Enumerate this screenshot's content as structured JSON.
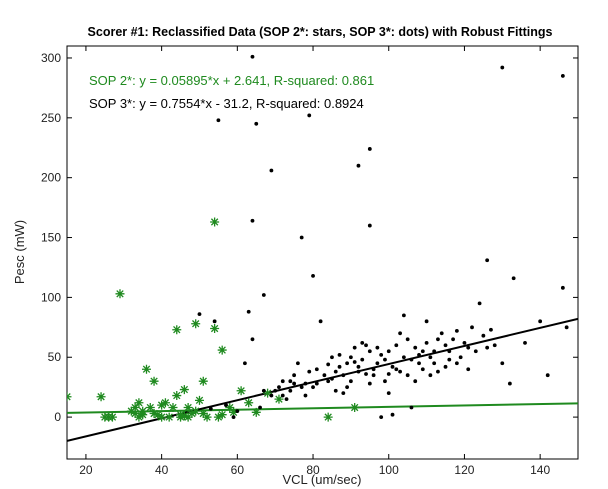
{
  "chart_data": {
    "type": "scatter",
    "title": "Scorer #1: Reclassified Data (SOP 2*: stars, SOP 3*: dots) with Robust Fittings",
    "xlabel": "VCL (um/sec)",
    "ylabel": "Pesc (mW)",
    "xlim": [
      15,
      150
    ],
    "ylim": [
      -35,
      310
    ],
    "xticks": [
      20,
      40,
      60,
      80,
      100,
      120,
      140
    ],
    "yticks": [
      0,
      50,
      100,
      150,
      200,
      250,
      300
    ],
    "annotations": [
      {
        "text": "SOP 2*: y = 0.05895*x + 2.641, R-squared: 0.861",
        "color": "#1f8a1f"
      },
      {
        "text": "SOP 3*: y = 0.7554*x - 31.2, R-squared: 0.8924",
        "color": "#000000"
      }
    ],
    "series": [
      {
        "label": "SOP 2*",
        "marker": "star",
        "color": "#1f8a1f",
        "points": [
          [
            15,
            17
          ],
          [
            24,
            17
          ],
          [
            25,
            0
          ],
          [
            26,
            0
          ],
          [
            27,
            0
          ],
          [
            29,
            103
          ],
          [
            32,
            5
          ],
          [
            33,
            8
          ],
          [
            33,
            3
          ],
          [
            34,
            12
          ],
          [
            34,
            0
          ],
          [
            35,
            2
          ],
          [
            35,
            5
          ],
          [
            36,
            40
          ],
          [
            37,
            8
          ],
          [
            38,
            30
          ],
          [
            38,
            3
          ],
          [
            39,
            2
          ],
          [
            40,
            10
          ],
          [
            40,
            0
          ],
          [
            41,
            12
          ],
          [
            42,
            0
          ],
          [
            43,
            8
          ],
          [
            44,
            18
          ],
          [
            44,
            73
          ],
          [
            45,
            2
          ],
          [
            45,
            0
          ],
          [
            46,
            23
          ],
          [
            46,
            1
          ],
          [
            47,
            0
          ],
          [
            47,
            8
          ],
          [
            48,
            3
          ],
          [
            49,
            78
          ],
          [
            49,
            5
          ],
          [
            50,
            14
          ],
          [
            51,
            3
          ],
          [
            51,
            30
          ],
          [
            52,
            0
          ],
          [
            54,
            163
          ],
          [
            54,
            74
          ],
          [
            55,
            0
          ],
          [
            56,
            56
          ],
          [
            56,
            2
          ],
          [
            58,
            8
          ],
          [
            59,
            4
          ],
          [
            61,
            22
          ],
          [
            63,
            12
          ],
          [
            65,
            4
          ],
          [
            68,
            20
          ],
          [
            71,
            15
          ],
          [
            84,
            0
          ],
          [
            91,
            8
          ]
        ]
      },
      {
        "label": "SOP 3*",
        "marker": "dot",
        "color": "#000000",
        "points": [
          [
            64,
            301
          ],
          [
            55,
            248
          ],
          [
            65,
            245
          ],
          [
            79,
            252
          ],
          [
            69,
            206
          ],
          [
            95,
            224
          ],
          [
            92,
            210
          ],
          [
            130,
            292
          ],
          [
            146,
            285
          ],
          [
            77,
            150
          ],
          [
            95,
            160
          ],
          [
            64,
            164
          ],
          [
            80,
            118
          ],
          [
            126,
            131
          ],
          [
            133,
            116
          ],
          [
            146,
            108
          ],
          [
            50,
            86
          ],
          [
            54,
            80
          ],
          [
            63,
            88
          ],
          [
            67,
            102
          ],
          [
            64,
            65
          ],
          [
            72,
            30
          ],
          [
            74,
            22
          ],
          [
            75,
            35
          ],
          [
            78,
            28
          ],
          [
            80,
            25
          ],
          [
            81,
            40
          ],
          [
            82,
            80
          ],
          [
            84,
            44
          ],
          [
            85,
            32
          ],
          [
            86,
            38
          ],
          [
            87,
            52
          ],
          [
            88,
            35
          ],
          [
            89,
            45
          ],
          [
            90,
            50
          ],
          [
            90,
            30
          ],
          [
            91,
            58
          ],
          [
            92,
            42
          ],
          [
            93,
            48
          ],
          [
            94,
            36
          ],
          [
            95,
            55
          ],
          [
            96,
            40
          ],
          [
            97,
            45
          ],
          [
            98,
            52
          ],
          [
            98,
            0
          ],
          [
            99,
            30
          ],
          [
            100,
            55
          ],
          [
            101,
            42
          ],
          [
            101,
            2
          ],
          [
            102,
            60
          ],
          [
            103,
            38
          ],
          [
            104,
            50
          ],
          [
            105,
            35
          ],
          [
            105,
            65
          ],
          [
            106,
            48
          ],
          [
            107,
            58
          ],
          [
            108,
            45
          ],
          [
            109,
            40
          ],
          [
            110,
            62
          ],
          [
            111,
            50
          ],
          [
            112,
            55
          ],
          [
            113,
            38
          ],
          [
            114,
            70
          ],
          [
            115,
            60
          ],
          [
            116,
            48
          ],
          [
            117,
            65
          ],
          [
            118,
            72
          ],
          [
            120,
            62
          ],
          [
            121,
            40
          ],
          [
            122,
            75
          ],
          [
            123,
            55
          ],
          [
            125,
            68
          ],
          [
            126,
            58
          ],
          [
            127,
            73
          ],
          [
            128,
            60
          ],
          [
            130,
            45
          ],
          [
            132,
            28
          ],
          [
            136,
            62
          ],
          [
            140,
            80
          ],
          [
            142,
            35
          ],
          [
            147,
            75
          ],
          [
            104,
            85
          ],
          [
            110,
            80
          ],
          [
            94,
            60
          ],
          [
            96,
            35
          ],
          [
            88,
            20
          ],
          [
            84,
            30
          ],
          [
            76,
            45
          ],
          [
            62,
            45
          ],
          [
            60,
            5
          ],
          [
            57,
            10
          ],
          [
            53,
            7
          ],
          [
            59,
            0
          ],
          [
            66,
            8
          ],
          [
            70,
            22
          ],
          [
            72,
            18
          ],
          [
            74,
            30
          ],
          [
            78,
            18
          ],
          [
            100,
            20
          ],
          [
            106,
            8
          ],
          [
            124,
            95
          ],
          [
            85,
            50
          ],
          [
            91,
            46
          ],
          [
            93,
            62
          ],
          [
            97,
            58
          ],
          [
            99,
            48
          ],
          [
            103,
            70
          ],
          [
            107,
            30
          ],
          [
            109,
            55
          ],
          [
            111,
            35
          ],
          [
            113,
            65
          ],
          [
            115,
            42
          ],
          [
            119,
            50
          ],
          [
            121,
            58
          ],
          [
            102,
            40
          ],
          [
            100,
            36
          ],
          [
            108,
            52
          ],
          [
            112,
            45
          ],
          [
            116,
            55
          ],
          [
            118,
            45
          ],
          [
            95,
            28
          ],
          [
            92,
            38
          ],
          [
            89,
            25
          ],
          [
            87,
            42
          ],
          [
            86,
            22
          ],
          [
            83,
            35
          ],
          [
            81,
            28
          ],
          [
            79,
            38
          ],
          [
            77,
            25
          ],
          [
            75,
            28
          ],
          [
            73,
            15
          ],
          [
            71,
            25
          ],
          [
            69,
            18
          ],
          [
            67,
            22
          ]
        ]
      }
    ],
    "fits": [
      {
        "label": "SOP 2* fit",
        "slope": 0.05895,
        "intercept": 2.641,
        "color": "#1f8a1f"
      },
      {
        "label": "SOP 3* fit",
        "slope": 0.7554,
        "intercept": -31.2,
        "color": "#000000"
      }
    ]
  }
}
